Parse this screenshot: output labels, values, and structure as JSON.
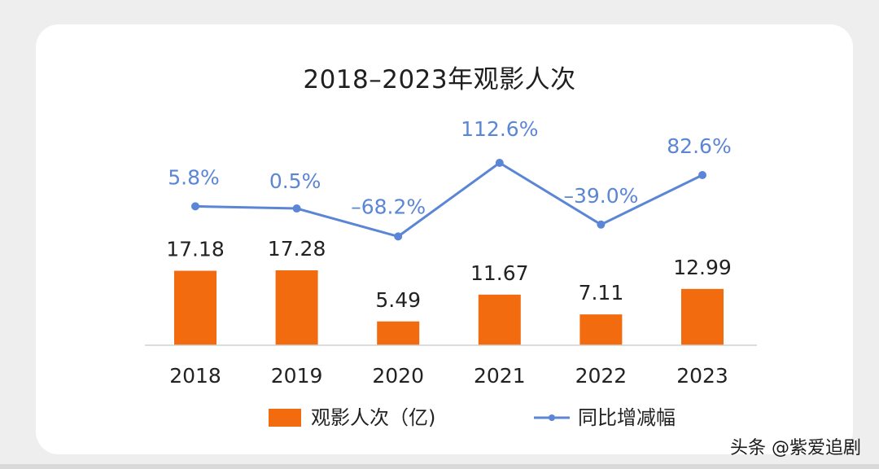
{
  "colors": {
    "bar": "#f26b0f",
    "line": "#5b86d6",
    "line_label": "#5b86d6",
    "text": "#222222",
    "axis": "#d0d0d0"
  },
  "chart_data": {
    "type": "bar",
    "title": "2018–2023年观影人次",
    "categories": [
      "2018",
      "2019",
      "2020",
      "2021",
      "2022",
      "2023"
    ],
    "series": [
      {
        "name": "观影人次（亿)",
        "type": "bar",
        "values": [
          17.18,
          17.28,
          5.49,
          11.67,
          7.11,
          12.99
        ],
        "labels": [
          "17.18",
          "17.28",
          "5.49",
          "11.67",
          "7.11",
          "12.99"
        ]
      },
      {
        "name": "同比增减幅",
        "type": "line",
        "values": [
          5.8,
          0.5,
          -68.2,
          112.6,
          -39.0,
          82.6
        ],
        "labels": [
          "5.8%",
          "0.5%",
          "–68.2%",
          "112.6%",
          "–39.0%",
          "82.6%"
        ]
      }
    ],
    "legend_position": "bottom",
    "grid": false
  },
  "watermark": "头条 @紫爱追剧"
}
